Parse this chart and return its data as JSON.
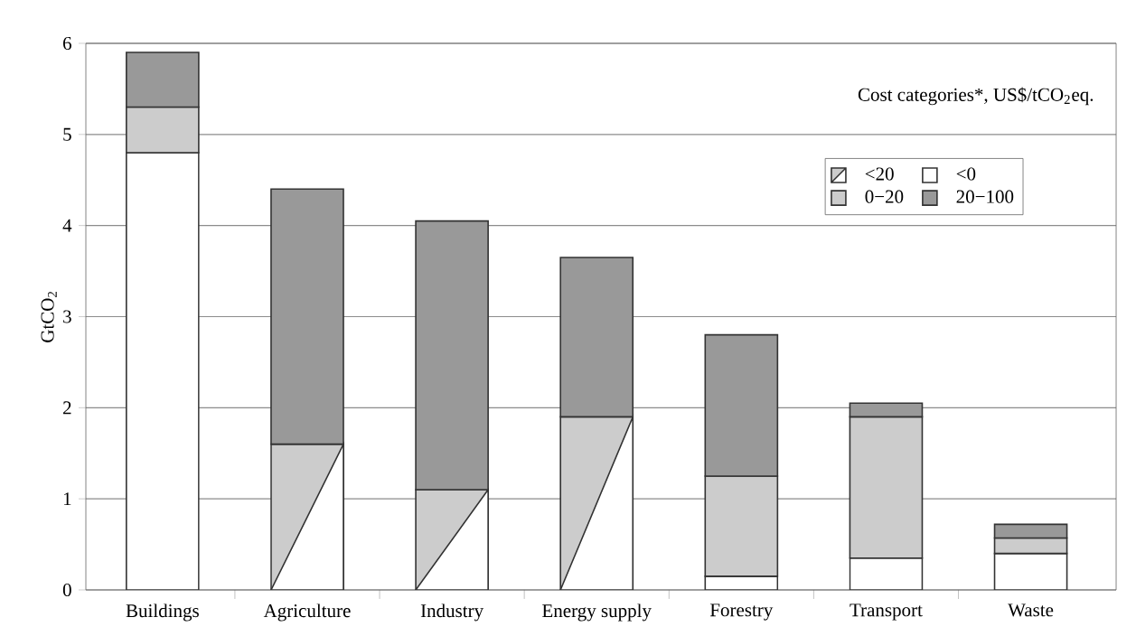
{
  "chart_data": {
    "type": "bar",
    "stacked": true,
    "ylabel": "GtCO$_{2}$",
    "legend_title": "Cost categories*, US$/tCO$_{2}$eq.",
    "categories": [
      "Buildings",
      "Agriculture",
      "Industry",
      "Energy supply",
      "Forestry",
      "Transport",
      "Waste"
    ],
    "series": [
      {
        "name": "<20",
        "color": "#cccccc",
        "values": [
          null,
          1.6,
          1.1,
          1.9,
          null,
          null,
          null
        ]
      },
      {
        "name": "<0",
        "color": "#ffffff",
        "values": [
          4.8,
          null,
          null,
          null,
          0.15,
          0.35,
          0.4
        ]
      },
      {
        "name": "0−20",
        "color": "#cccccc",
        "values": [
          0.5,
          null,
          null,
          null,
          1.1,
          1.55,
          0.17
        ]
      },
      {
        "name": "20−100",
        "color": "#999999",
        "values": [
          0.6,
          2.8,
          2.95,
          1.75,
          1.55,
          0.15,
          0.15
        ]
      }
    ],
    "ylim": [
      0,
      6
    ],
    "yticks": [
      0,
      1,
      2,
      3,
      4,
      5,
      6
    ],
    "grid": "y",
    "legend": "top right"
  }
}
